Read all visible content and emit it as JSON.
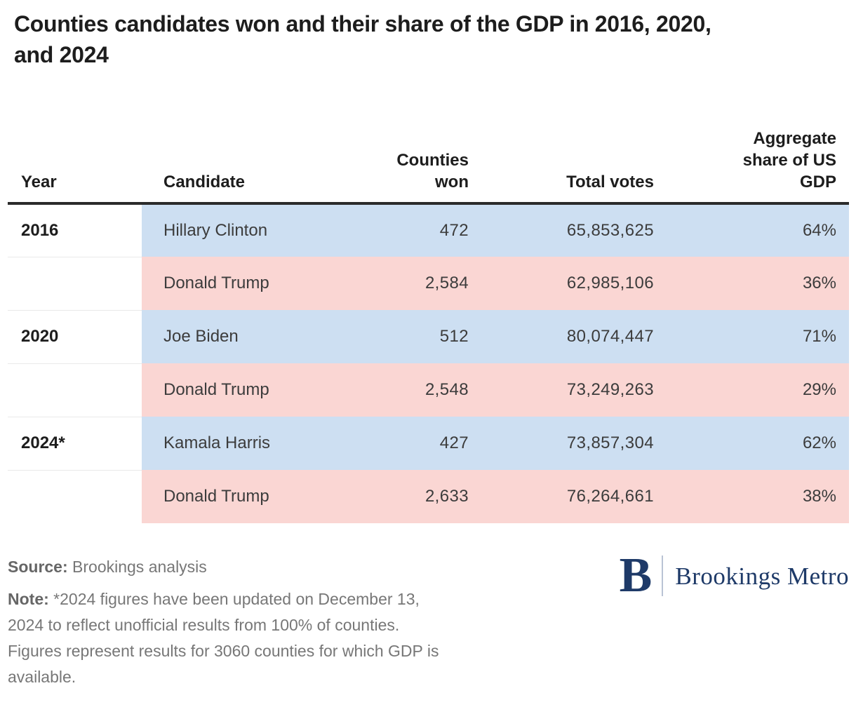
{
  "title": "Counties candidates won and their share of the GDP in 2016, 2020,\nand 2024",
  "table": {
    "headers": {
      "year": "Year",
      "candidate": "Candidate",
      "counties_won": "Counties\nwon",
      "total_votes": "Total votes",
      "gdp_share": "Aggregate\nshare of US\nGDP"
    },
    "rows": [
      {
        "year": "2016",
        "candidate": "Hillary Clinton",
        "counties_won": "472",
        "total_votes": "65,853,625",
        "gdp_share": "64%",
        "party": "dem"
      },
      {
        "year": "",
        "candidate": "Donald Trump",
        "counties_won": "2,584",
        "total_votes": "62,985,106",
        "gdp_share": "36%",
        "party": "rep"
      },
      {
        "year": "2020",
        "candidate": "Joe Biden",
        "counties_won": "512",
        "total_votes": "80,074,447",
        "gdp_share": "71%",
        "party": "dem"
      },
      {
        "year": "",
        "candidate": "Donald Trump",
        "counties_won": "2,548",
        "total_votes": "73,249,263",
        "gdp_share": "29%",
        "party": "rep"
      },
      {
        "year": "2024*",
        "candidate": "Kamala Harris",
        "counties_won": "427",
        "total_votes": "73,857,304",
        "gdp_share": "62%",
        "party": "dem"
      },
      {
        "year": "",
        "candidate": "Donald Trump",
        "counties_won": "2,633",
        "total_votes": "76,264,661",
        "gdp_share": "38%",
        "party": "rep"
      }
    ]
  },
  "footer": {
    "source_label": "Source:",
    "source_text": "Brookings analysis",
    "note_label": "Note:",
    "note_text": "*2024 figures have been updated on December 13,\n2024 to reflect unofficial results from 100% of counties.\nFigures represent results for 3060 counties for which GDP is\navailable."
  },
  "logo": {
    "mark": "B",
    "name": "Brookings Metro"
  },
  "colors": {
    "dem_row": "#cddff2",
    "rep_row": "#fad6d3",
    "navy": "#1e3a68",
    "header_rule": "#2b2b2b"
  },
  "chart_data": {
    "type": "table",
    "title": "Counties candidates won and their share of the GDP in 2016, 2020, and 2024",
    "columns": [
      "Year",
      "Candidate",
      "Counties won",
      "Total votes",
      "Aggregate share of US GDP"
    ],
    "rows": [
      [
        "2016",
        "Hillary Clinton",
        472,
        65853625,
        "64%"
      ],
      [
        "2016",
        "Donald Trump",
        2584,
        62985106,
        "36%"
      ],
      [
        "2020",
        "Joe Biden",
        512,
        80074447,
        "71%"
      ],
      [
        "2020",
        "Donald Trump",
        2548,
        73249263,
        "29%"
      ],
      [
        "2024*",
        "Kamala Harris",
        427,
        73857304,
        "62%"
      ],
      [
        "2024*",
        "Donald Trump",
        2633,
        76264661,
        "38%"
      ]
    ],
    "row_party_color": [
      "dem",
      "rep",
      "dem",
      "rep",
      "dem",
      "rep"
    ],
    "source": "Brookings analysis",
    "note": "*2024 figures have been updated on December 13, 2024 to reflect unofficial results from 100% of counties. Figures represent results for 3060 counties for which GDP is available."
  }
}
